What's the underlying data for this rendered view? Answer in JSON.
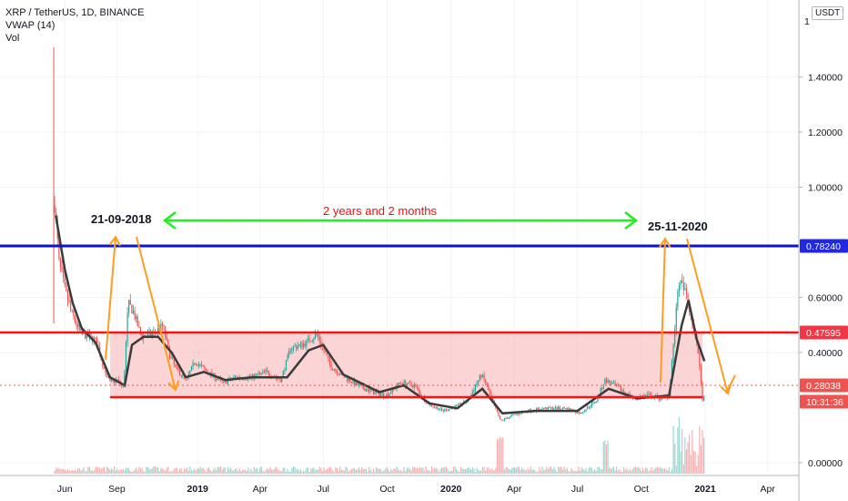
{
  "legend": {
    "symbol_line": "XRP / TetherUS, 1D, BINANCE",
    "indicator_line": "VWAP (14)",
    "volume_line": "Vol"
  },
  "currency_button": "USDT",
  "colors": {
    "up": "#26a69a",
    "down": "#ef5350",
    "vwap": "#3b3b3b",
    "resistance": "#0b14d6",
    "support_red": "#ff1111",
    "range_fill": "#f7b3b3",
    "green_arrow": "#22ee22",
    "orange_arrow": "#ff9d1e",
    "annotation_red": "#ee1111",
    "last_price_dash": "#ef5350"
  },
  "chart_data": {
    "type": "candlestick",
    "scale": "log",
    "x_ticks": [
      "Jun",
      "Sep",
      "2019",
      "Apr",
      "Jul",
      "Oct",
      "2020",
      "Apr",
      "Jul",
      "Oct",
      "2021",
      "Apr"
    ],
    "x_ticks_bold": [
      "2019",
      "2020",
      "2021"
    ],
    "y_ticks": [
      "1.40000",
      "1.20000",
      "1.00000",
      "0.60000",
      "0.40000",
      "0.00000"
    ],
    "y_tick_values": [
      1.4,
      1.2,
      1.0,
      0.6,
      0.4,
      0.0
    ],
    "y_top_label": "1",
    "price_labels": [
      {
        "text": "0.78240",
        "value": 0.7824,
        "color": "#2028e0"
      },
      {
        "text": "0.47595",
        "value": 0.47595,
        "color": "#f23645"
      },
      {
        "text": "0.28038",
        "value": 0.28038,
        "color": "#ef5350"
      },
      {
        "text": "10:31:36",
        "value": 0.241,
        "color": "#ef5350"
      }
    ],
    "levels": [
      {
        "name": "resistance",
        "value": 0.7824
      },
      {
        "name": "range-top",
        "value": 0.47595
      },
      {
        "name": "range-bottom",
        "value": 0.245
      }
    ],
    "price_path": [
      [
        "2018-05-14",
        0.94
      ],
      [
        "2018-05-22",
        0.72
      ],
      [
        "2018-06-01",
        0.63
      ],
      [
        "2018-06-12",
        0.55
      ],
      [
        "2018-06-22",
        0.5
      ],
      [
        "2018-07-01",
        0.47
      ],
      [
        "2018-07-15",
        0.46
      ],
      [
        "2018-07-28",
        0.44
      ],
      [
        "2018-08-08",
        0.35
      ],
      [
        "2018-08-20",
        0.29
      ],
      [
        "2018-09-02",
        0.3
      ],
      [
        "2018-09-13",
        0.27
      ],
      [
        "2018-09-21",
        0.58
      ],
      [
        "2018-09-30",
        0.55
      ],
      [
        "2018-10-12",
        0.46
      ],
      [
        "2018-10-28",
        0.47
      ],
      [
        "2018-11-12",
        0.5
      ],
      [
        "2018-11-22",
        0.39
      ],
      [
        "2018-12-01",
        0.34
      ],
      [
        "2018-12-16",
        0.3
      ],
      [
        "2018-12-28",
        0.37
      ],
      [
        "2019-01-15",
        0.33
      ],
      [
        "2019-02-07",
        0.29
      ],
      [
        "2019-02-25",
        0.31
      ],
      [
        "2019-03-20",
        0.31
      ],
      [
        "2019-04-10",
        0.33
      ],
      [
        "2019-05-01",
        0.3
      ],
      [
        "2019-05-15",
        0.42
      ],
      [
        "2019-06-01",
        0.43
      ],
      [
        "2019-06-22",
        0.47
      ],
      [
        "2019-07-12",
        0.35
      ],
      [
        "2019-08-01",
        0.31
      ],
      [
        "2019-08-20",
        0.28
      ],
      [
        "2019-09-10",
        0.26
      ],
      [
        "2019-09-30",
        0.25
      ],
      [
        "2019-10-20",
        0.29
      ],
      [
        "2019-11-10",
        0.28
      ],
      [
        "2019-11-28",
        0.22
      ],
      [
        "2019-12-20",
        0.19
      ],
      [
        "2020-01-10",
        0.21
      ],
      [
        "2020-01-25",
        0.23
      ],
      [
        "2020-02-14",
        0.32
      ],
      [
        "2020-02-28",
        0.24
      ],
      [
        "2020-03-12",
        0.15
      ],
      [
        "2020-03-28",
        0.17
      ],
      [
        "2020-04-20",
        0.19
      ],
      [
        "2020-05-15",
        0.2
      ],
      [
        "2020-06-15",
        0.2
      ],
      [
        "2020-07-05",
        0.18
      ],
      [
        "2020-07-28",
        0.23
      ],
      [
        "2020-08-10",
        0.3
      ],
      [
        "2020-08-30",
        0.27
      ],
      [
        "2020-09-20",
        0.24
      ],
      [
        "2020-10-10",
        0.25
      ],
      [
        "2020-10-28",
        0.24
      ],
      [
        "2020-11-10",
        0.25
      ],
      [
        "2020-11-24",
        0.66
      ],
      [
        "2020-12-05",
        0.61
      ],
      [
        "2020-12-15",
        0.5
      ],
      [
        "2020-12-22",
        0.4
      ],
      [
        "2020-12-29",
        0.21
      ],
      [
        "2020-12-31",
        0.28
      ]
    ],
    "vwap_path": [
      [
        "2018-05-16",
        0.9
      ],
      [
        "2018-06-01",
        0.7
      ],
      [
        "2018-06-15",
        0.58
      ],
      [
        "2018-07-01",
        0.49
      ],
      [
        "2018-07-25",
        0.44
      ],
      [
        "2018-08-20",
        0.31
      ],
      [
        "2018-09-15",
        0.28
      ],
      [
        "2018-09-28",
        0.43
      ],
      [
        "2018-10-15",
        0.46
      ],
      [
        "2018-11-05",
        0.46
      ],
      [
        "2018-11-25",
        0.4
      ],
      [
        "2018-12-15",
        0.31
      ],
      [
        "2019-01-10",
        0.33
      ],
      [
        "2019-02-10",
        0.3
      ],
      [
        "2019-03-20",
        0.31
      ],
      [
        "2019-05-10",
        0.31
      ],
      [
        "2019-06-10",
        0.41
      ],
      [
        "2019-07-01",
        0.43
      ],
      [
        "2019-07-30",
        0.32
      ],
      [
        "2019-09-20",
        0.26
      ],
      [
        "2019-10-25",
        0.28
      ],
      [
        "2019-12-01",
        0.22
      ],
      [
        "2020-01-10",
        0.2
      ],
      [
        "2020-02-15",
        0.27
      ],
      [
        "2020-03-15",
        0.18
      ],
      [
        "2020-05-01",
        0.19
      ],
      [
        "2020-07-01",
        0.19
      ],
      [
        "2020-08-15",
        0.27
      ],
      [
        "2020-09-25",
        0.24
      ],
      [
        "2020-11-10",
        0.25
      ],
      [
        "2020-11-28",
        0.5
      ],
      [
        "2020-12-08",
        0.59
      ],
      [
        "2020-12-20",
        0.45
      ],
      [
        "2020-12-31",
        0.37
      ]
    ]
  },
  "annotations": {
    "date_left": "21-09-2018",
    "date_right": "25-11-2020",
    "duration": "2 years and 2 months"
  }
}
